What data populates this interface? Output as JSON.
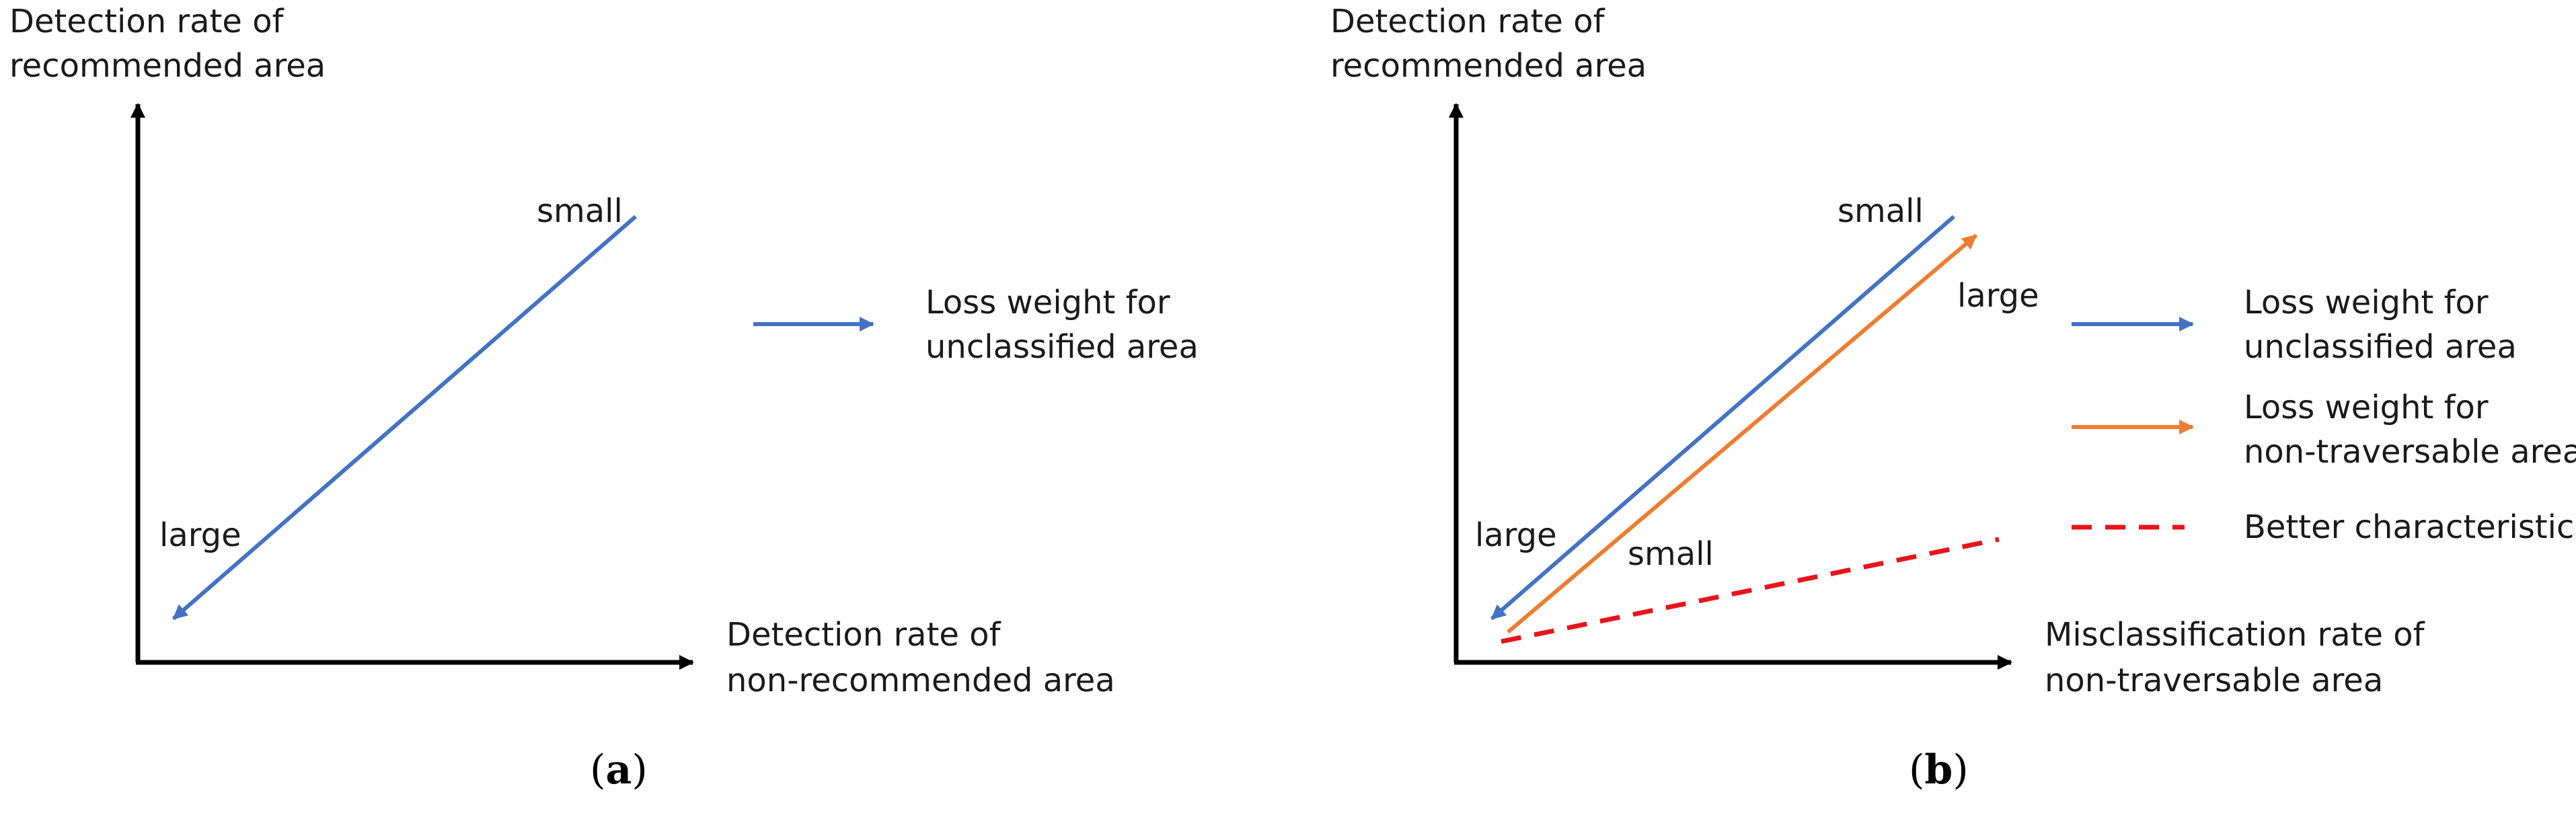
{
  "colors": {
    "axis": "#000000",
    "blue": "#4472C4",
    "orange": "#ED7D31",
    "red": "#E8141B",
    "text": "#1a1a1a"
  },
  "panel_a": {
    "y_axis_label_line1": "Detection rate of",
    "y_axis_label_line2": "recommended area",
    "x_axis_label_line1": "Detection rate of",
    "x_axis_label_line2": "non-recommended area",
    "arrow_start_label": "small",
    "arrow_end_label": "large",
    "legend": [
      {
        "line1": "Loss weight for",
        "line2": "unclassified area",
        "color": "blue",
        "style": "arrow"
      }
    ],
    "caption_open": "(",
    "caption_letter": "a",
    "caption_close": ")"
  },
  "panel_b": {
    "y_axis_label_line1": "Detection rate of",
    "y_axis_label_line2": "recommended area",
    "x_axis_label_line1": "Misclassification rate of",
    "x_axis_label_line2": "non-traversable area",
    "blue_start_label": "small",
    "blue_end_label": "large",
    "orange_start_label": "small",
    "orange_end_label": "large",
    "legend": [
      {
        "line1": "Loss weight for",
        "line2": "unclassified area",
        "color": "blue",
        "style": "arrow"
      },
      {
        "line1": "Loss weight for",
        "line2": "non-traversable area",
        "color": "orange",
        "style": "arrow"
      },
      {
        "line1": "Better characteristic",
        "line2": "",
        "color": "red",
        "style": "dashed"
      }
    ],
    "caption_open": "(",
    "caption_letter": "b",
    "caption_close": ")"
  }
}
